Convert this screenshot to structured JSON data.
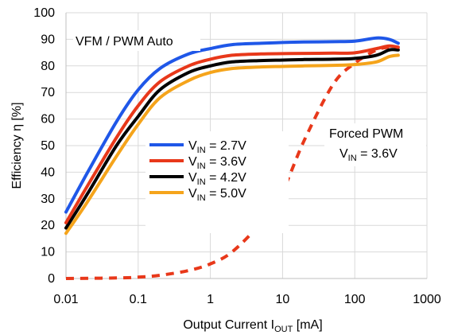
{
  "chart_data": {
    "type": "line",
    "xlabel": {
      "main": "Output Current I",
      "sub": "OUT",
      "unit": " [mA]"
    },
    "ylabel": "Efficiency  η [%]",
    "xscale": "log",
    "xlim": [
      0.01,
      1000
    ],
    "ylim": [
      0,
      100
    ],
    "xticks": [
      0.01,
      0.1,
      1,
      10,
      100,
      1000
    ],
    "xtick_labels": [
      "0.01",
      "0.1",
      "1",
      "10",
      "100",
      "1000"
    ],
    "yticks": [
      0,
      10,
      20,
      30,
      40,
      50,
      60,
      70,
      80,
      90,
      100
    ],
    "grid": true,
    "legend_position": "center-left",
    "annotations": {
      "mode": "VFM / PWM Auto",
      "forced_line1": "Forced PWM",
      "forced_line2": {
        "main": "V",
        "sub": "IN",
        "rest": " = 3.6V"
      }
    },
    "series": [
      {
        "name": "V_IN = 2.7V",
        "legend": {
          "main": "V",
          "sub": "IN",
          "rest": " = 2.7V"
        },
        "color": "#1f57e8",
        "dash": false,
        "x": [
          0.01,
          0.02,
          0.05,
          0.1,
          0.2,
          0.5,
          1,
          2,
          5,
          10,
          20,
          50,
          100,
          200,
          300,
          400
        ],
        "y": [
          25,
          40,
          59,
          71,
          79,
          84.5,
          86.5,
          88,
          88.5,
          88.8,
          89,
          89.1,
          89.3,
          90.5,
          90,
          88.5
        ]
      },
      {
        "name": "V_IN = 3.6V",
        "legend": {
          "main": "V",
          "sub": "IN",
          "rest": " = 3.6V"
        },
        "color": "#e8381a",
        "dash": false,
        "x": [
          0.01,
          0.02,
          0.05,
          0.1,
          0.2,
          0.5,
          1,
          2,
          5,
          10,
          20,
          50,
          100,
          200,
          300,
          400
        ],
        "y": [
          21,
          35,
          53,
          65,
          74,
          80,
          82.5,
          84,
          84.5,
          84.6,
          84.7,
          84.8,
          84.9,
          86.5,
          87.5,
          87
        ]
      },
      {
        "name": "V_IN = 4.2V",
        "legend": {
          "main": "V",
          "sub": "IN",
          "rest": " = 4.2V"
        },
        "color": "#000000",
        "dash": false,
        "x": [
          0.01,
          0.02,
          0.05,
          0.1,
          0.2,
          0.5,
          1,
          2,
          5,
          10,
          20,
          50,
          100,
          200,
          300,
          400
        ],
        "y": [
          19,
          32,
          50,
          61,
          71,
          77.5,
          80,
          81.5,
          82,
          82.2,
          82.4,
          82.5,
          82.8,
          84,
          86,
          86
        ]
      },
      {
        "name": "V_IN = 5.0V",
        "legend": {
          "main": "V",
          "sub": "IN",
          "rest": " = 5.0V"
        },
        "color": "#f5a41b",
        "dash": false,
        "x": [
          0.01,
          0.02,
          0.05,
          0.1,
          0.2,
          0.5,
          1,
          2,
          5,
          10,
          20,
          50,
          100,
          200,
          300,
          400
        ],
        "y": [
          17,
          29,
          46,
          58,
          68,
          74.5,
          77.5,
          79,
          79.6,
          79.8,
          80,
          80.2,
          80.5,
          81.5,
          83.5,
          84
        ]
      },
      {
        "name": "Forced PWM, V_IN = 3.6V",
        "color": "#e8381a",
        "dash": true,
        "x": [
          0.01,
          0.05,
          0.1,
          0.2,
          0.5,
          1,
          2,
          5,
          10,
          20,
          50,
          100,
          200,
          300,
          400
        ],
        "y": [
          0,
          0.2,
          0.5,
          1.2,
          3,
          5.5,
          10,
          21,
          33,
          52,
          73,
          81,
          86,
          87,
          87
        ]
      }
    ]
  }
}
